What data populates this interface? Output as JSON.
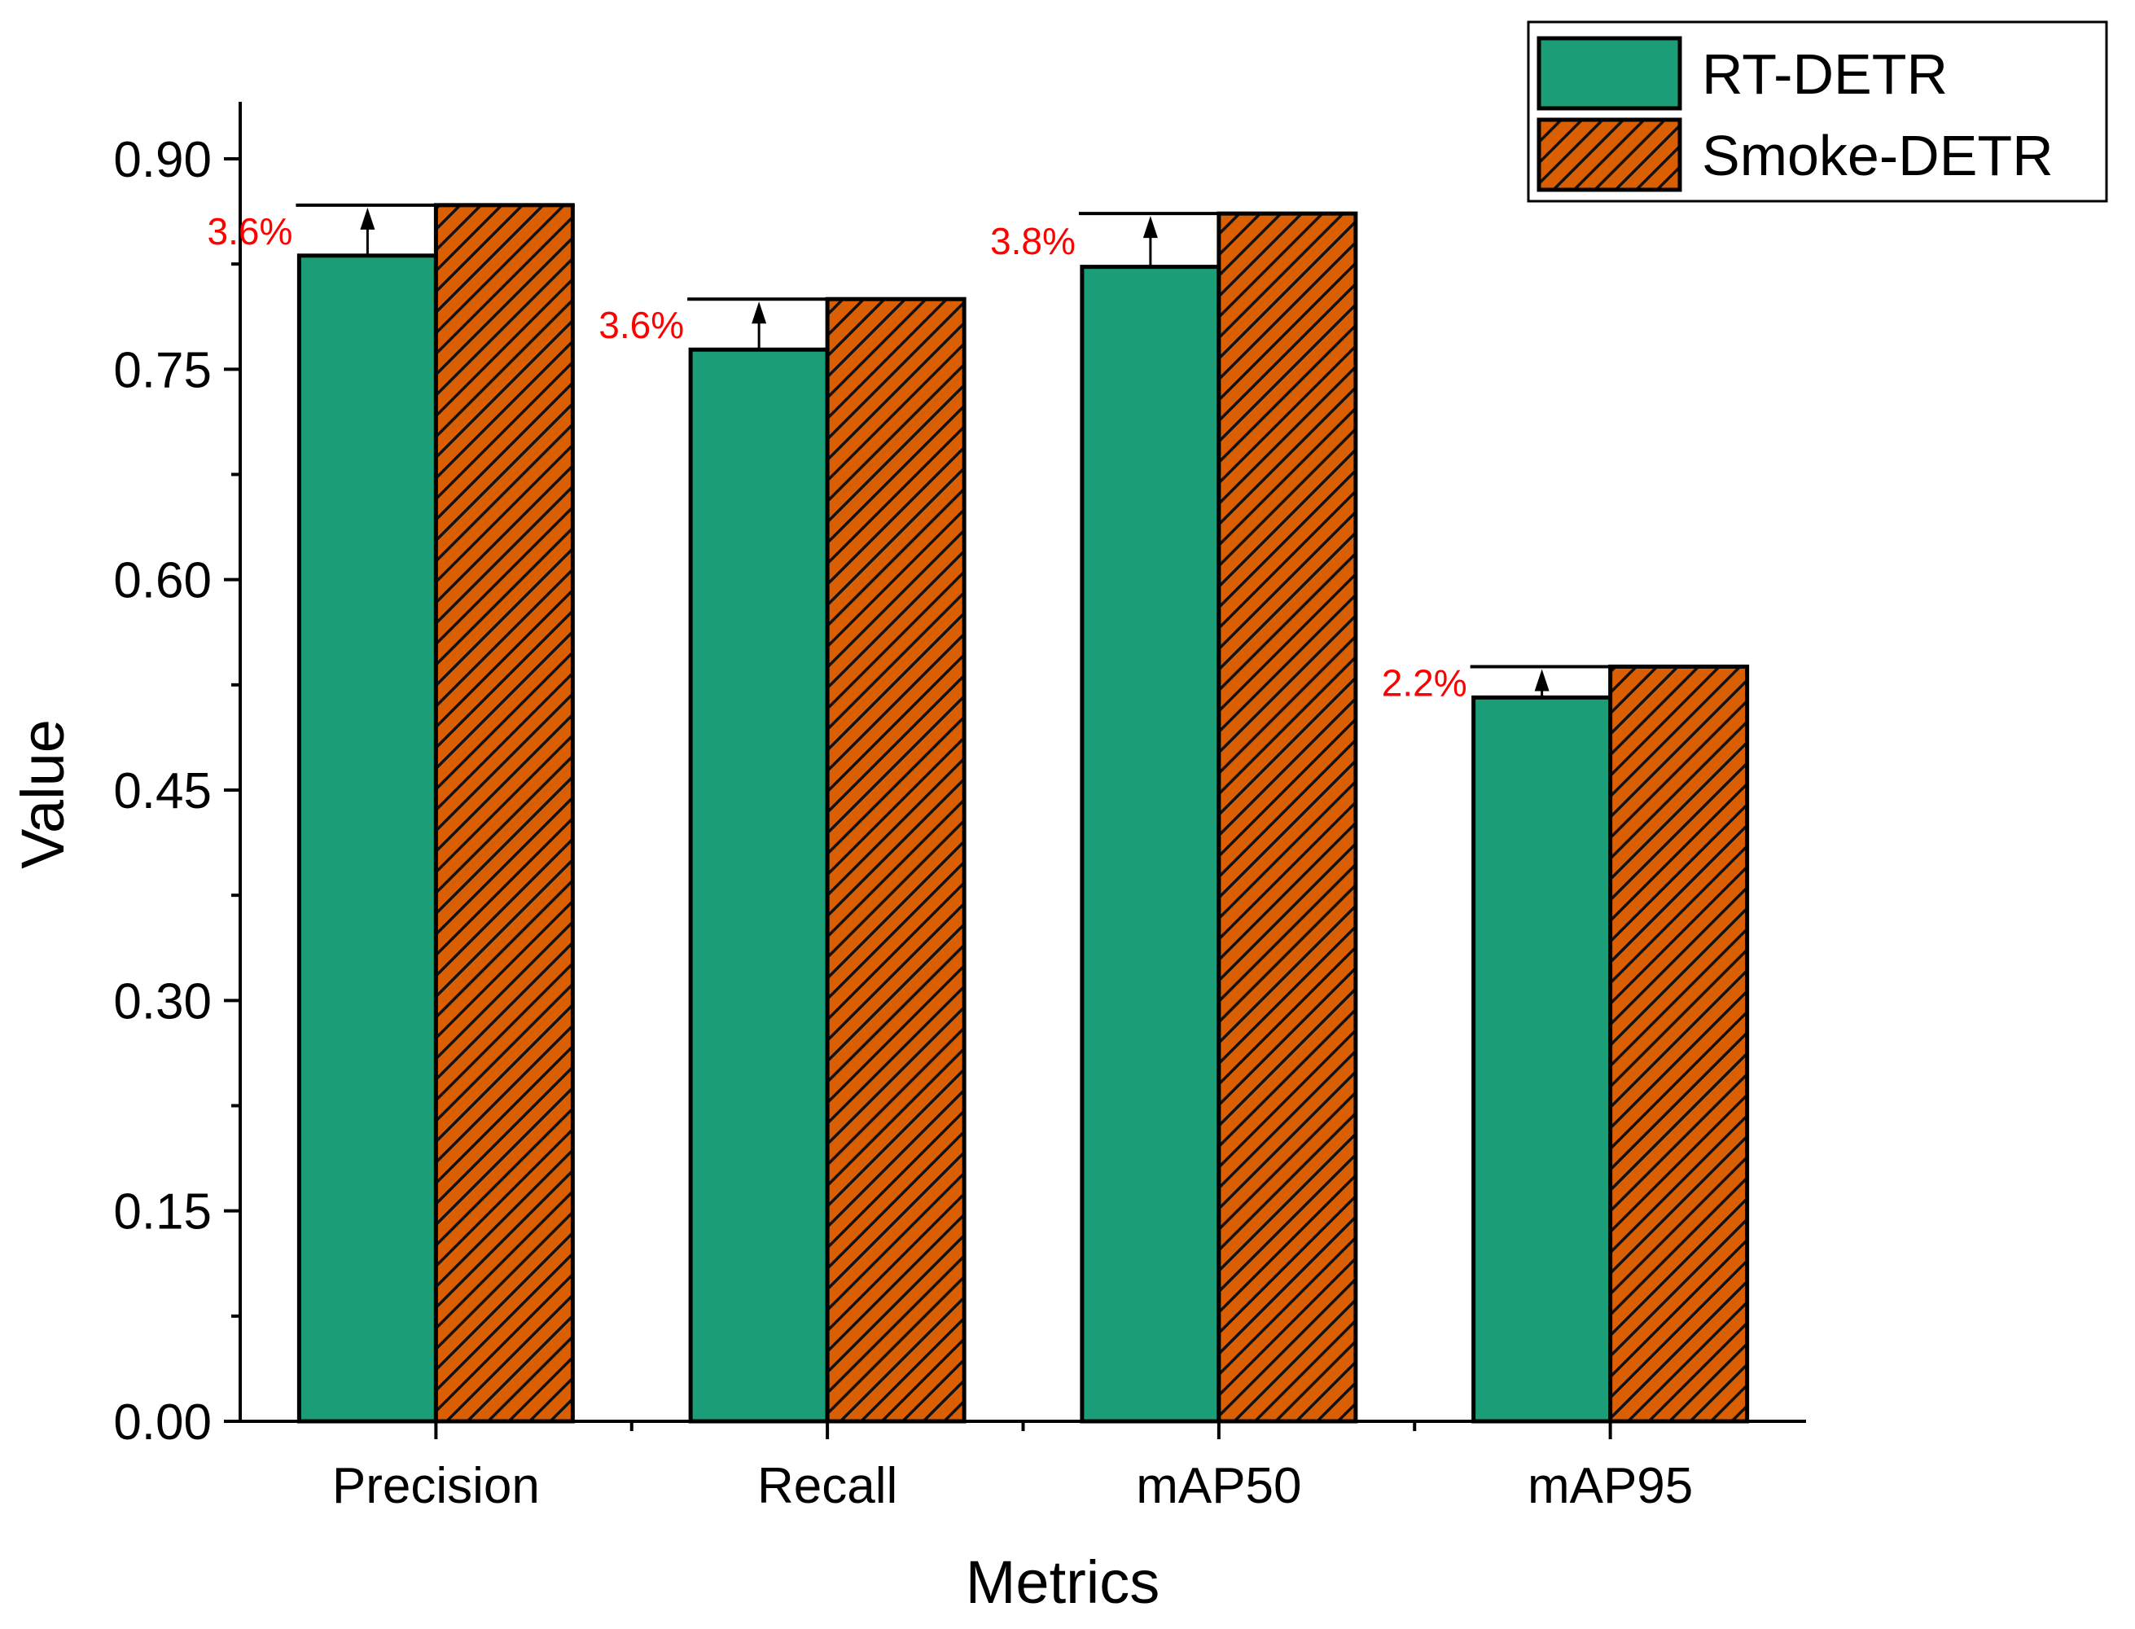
{
  "chart_data": {
    "type": "bar",
    "title": "",
    "xlabel": "Metrics",
    "ylabel": "Value",
    "categories": [
      "Precision",
      "Recall",
      "mAP50",
      "mAP95"
    ],
    "series": [
      {
        "name": "RT-DETR",
        "values": [
          0.831,
          0.764,
          0.823,
          0.516
        ],
        "color": "#1b9e77",
        "pattern": "solid"
      },
      {
        "name": "Smoke-DETR",
        "values": [
          0.867,
          0.8,
          0.861,
          0.538
        ],
        "color": "#d95f02",
        "pattern": "diagonal-hatch"
      }
    ],
    "annotations": [
      "3.6%",
      "3.6%",
      "3.8%",
      "2.2%"
    ],
    "annotation_color": "#ff0000",
    "ylim": [
      0,
      0.9
    ],
    "yticks": [
      "0.00",
      "0.15",
      "0.30",
      "0.45",
      "0.60",
      "0.75",
      "0.90"
    ],
    "grid": false,
    "legend_position": "top-right"
  }
}
